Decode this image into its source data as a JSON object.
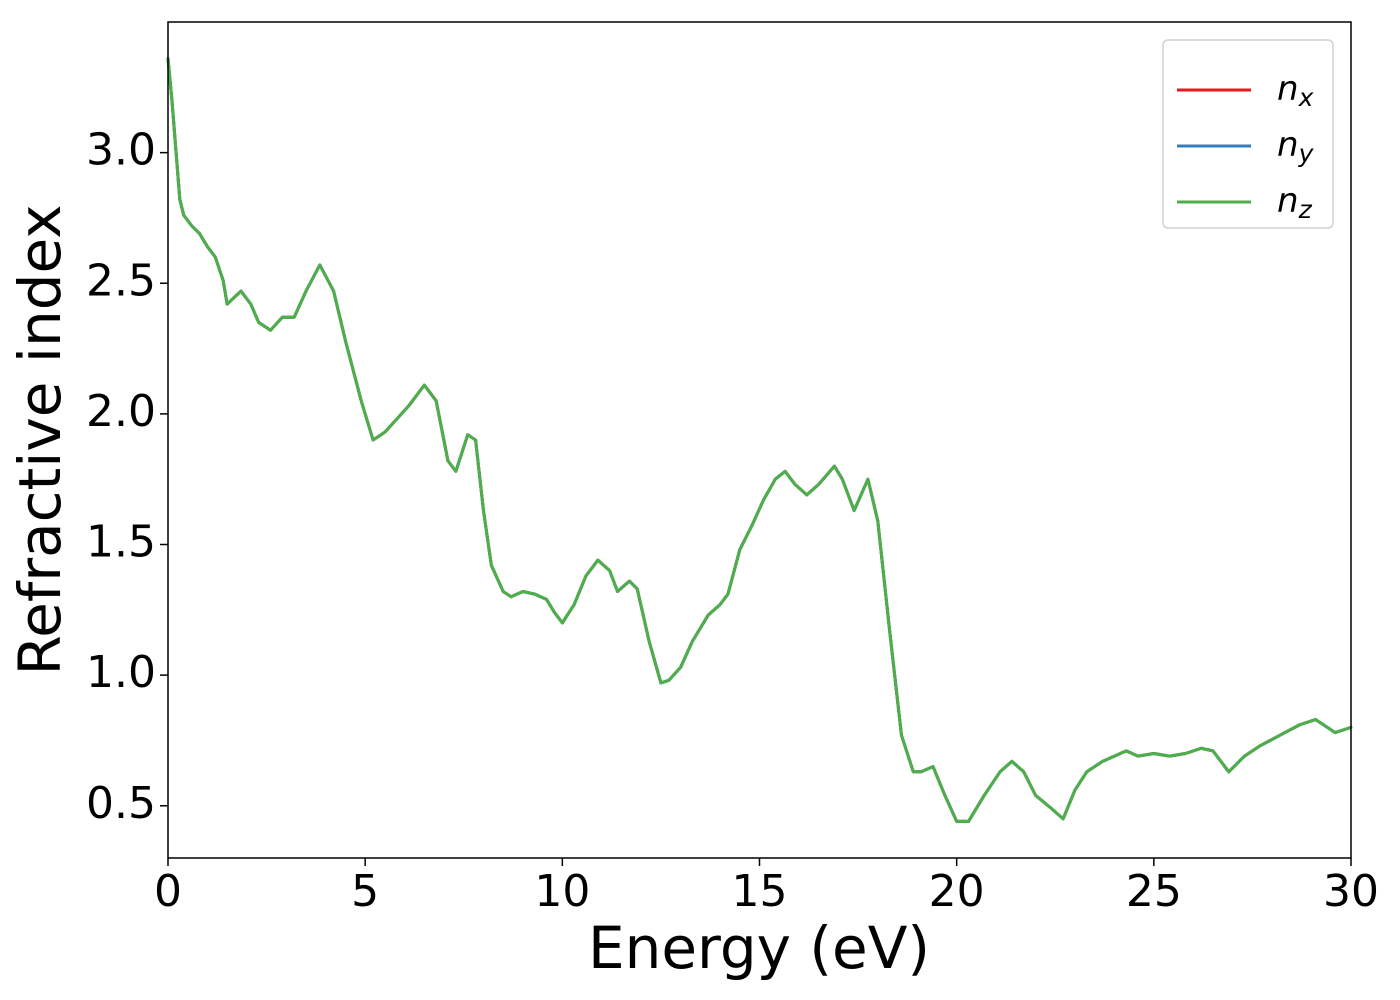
{
  "chart_data": {
    "type": "line",
    "xlabel": "Energy (eV)",
    "ylabel": "Refractive index",
    "x": [
      0,
      0.1,
      0.2,
      0.3,
      0.4,
      0.6,
      0.8,
      1.0,
      1.2,
      1.4,
      1.5,
      1.85,
      2.1,
      2.3,
      2.6,
      2.9,
      3.2,
      3.5,
      3.85,
      4.2,
      4.5,
      4.9,
      5.2,
      5.5,
      5.8,
      6.1,
      6.5,
      6.8,
      7.1,
      7.3,
      7.6,
      7.8,
      8.0,
      8.2,
      8.5,
      8.7,
      9.0,
      9.3,
      9.6,
      9.8,
      10.0,
      10.3,
      10.6,
      10.9,
      11.2,
      11.4,
      11.7,
      11.9,
      12.2,
      12.5,
      12.7,
      13.0,
      13.3,
      13.7,
      14.0,
      14.2,
      14.5,
      14.8,
      15.1,
      15.4,
      15.65,
      15.9,
      16.2,
      16.5,
      16.9,
      17.1,
      17.4,
      17.75,
      18.0,
      18.3,
      18.6,
      18.9,
      19.1,
      19.4,
      19.7,
      20.0,
      20.3,
      20.7,
      21.1,
      21.4,
      21.7,
      22.0,
      22.4,
      22.7,
      23.0,
      23.3,
      23.7,
      24.0,
      24.3,
      24.6,
      25.0,
      25.4,
      25.8,
      26.2,
      26.5,
      26.9,
      27.3,
      27.7,
      28.2,
      28.7,
      29.1,
      29.6,
      30.0
    ],
    "series": [
      {
        "name": "nx",
        "color": "#e41a1c",
        "values": [
          3.36,
          3.2,
          3.01,
          2.82,
          2.76,
          2.72,
          2.69,
          2.64,
          2.6,
          2.51,
          2.42,
          2.47,
          2.42,
          2.35,
          2.32,
          2.37,
          2.37,
          2.47,
          2.57,
          2.47,
          2.28,
          2.05,
          1.9,
          1.93,
          1.98,
          2.03,
          2.11,
          2.05,
          1.82,
          1.78,
          1.92,
          1.9,
          1.63,
          1.42,
          1.32,
          1.3,
          1.32,
          1.31,
          1.29,
          1.24,
          1.2,
          1.27,
          1.38,
          1.44,
          1.4,
          1.32,
          1.36,
          1.33,
          1.13,
          0.97,
          0.98,
          1.03,
          1.13,
          1.23,
          1.27,
          1.31,
          1.48,
          1.57,
          1.67,
          1.75,
          1.78,
          1.73,
          1.69,
          1.73,
          1.8,
          1.75,
          1.63,
          1.75,
          1.59,
          1.17,
          0.77,
          0.63,
          0.63,
          0.65,
          0.54,
          0.44,
          0.44,
          0.54,
          0.63,
          0.67,
          0.63,
          0.54,
          0.49,
          0.45,
          0.56,
          0.63,
          0.67,
          0.69,
          0.71,
          0.69,
          0.7,
          0.69,
          0.7,
          0.72,
          0.71,
          0.63,
          0.69,
          0.73,
          0.77,
          0.81,
          0.83,
          0.78,
          0.8
        ]
      },
      {
        "name": "ny",
        "color": "#377eb8",
        "values": [
          3.36,
          3.2,
          3.01,
          2.82,
          2.76,
          2.72,
          2.69,
          2.64,
          2.6,
          2.51,
          2.42,
          2.47,
          2.42,
          2.35,
          2.32,
          2.37,
          2.37,
          2.47,
          2.57,
          2.47,
          2.28,
          2.05,
          1.9,
          1.93,
          1.98,
          2.03,
          2.11,
          2.05,
          1.82,
          1.78,
          1.92,
          1.9,
          1.63,
          1.42,
          1.32,
          1.3,
          1.32,
          1.31,
          1.29,
          1.24,
          1.2,
          1.27,
          1.38,
          1.44,
          1.4,
          1.32,
          1.36,
          1.33,
          1.13,
          0.97,
          0.98,
          1.03,
          1.13,
          1.23,
          1.27,
          1.31,
          1.48,
          1.57,
          1.67,
          1.75,
          1.78,
          1.73,
          1.69,
          1.73,
          1.8,
          1.75,
          1.63,
          1.75,
          1.59,
          1.17,
          0.77,
          0.63,
          0.63,
          0.65,
          0.54,
          0.44,
          0.44,
          0.54,
          0.63,
          0.67,
          0.63,
          0.54,
          0.49,
          0.45,
          0.56,
          0.63,
          0.67,
          0.69,
          0.71,
          0.69,
          0.7,
          0.69,
          0.7,
          0.72,
          0.71,
          0.63,
          0.69,
          0.73,
          0.77,
          0.81,
          0.83,
          0.78,
          0.8
        ]
      },
      {
        "name": "nz",
        "color": "#4daf4a",
        "values": [
          3.36,
          3.2,
          3.01,
          2.82,
          2.76,
          2.72,
          2.69,
          2.64,
          2.6,
          2.51,
          2.42,
          2.47,
          2.42,
          2.35,
          2.32,
          2.37,
          2.37,
          2.47,
          2.57,
          2.47,
          2.28,
          2.05,
          1.9,
          1.93,
          1.98,
          2.03,
          2.11,
          2.05,
          1.82,
          1.78,
          1.92,
          1.9,
          1.63,
          1.42,
          1.32,
          1.3,
          1.32,
          1.31,
          1.29,
          1.24,
          1.2,
          1.27,
          1.38,
          1.44,
          1.4,
          1.32,
          1.36,
          1.33,
          1.13,
          0.97,
          0.98,
          1.03,
          1.13,
          1.23,
          1.27,
          1.31,
          1.48,
          1.57,
          1.67,
          1.75,
          1.78,
          1.73,
          1.69,
          1.73,
          1.8,
          1.75,
          1.63,
          1.75,
          1.59,
          1.17,
          0.77,
          0.63,
          0.63,
          0.65,
          0.54,
          0.44,
          0.44,
          0.54,
          0.63,
          0.67,
          0.63,
          0.54,
          0.49,
          0.45,
          0.56,
          0.63,
          0.67,
          0.69,
          0.71,
          0.69,
          0.7,
          0.69,
          0.7,
          0.72,
          0.71,
          0.63,
          0.69,
          0.73,
          0.77,
          0.81,
          0.83,
          0.78,
          0.8
        ]
      }
    ],
    "xlim": [
      0,
      30
    ],
    "xticks": [
      0,
      5,
      10,
      15,
      20,
      25,
      30
    ],
    "ylim": [
      0.3,
      3.5
    ],
    "yticks": [
      0.5,
      {
        "value": 1,
        "label": "1.0"
      },
      1.5,
      {
        "value": 2,
        "label": "2.0"
      },
      2.5,
      {
        "value": 3,
        "label": "3.0"
      }
    ],
    "grid": false,
    "legend": "upper right"
  }
}
